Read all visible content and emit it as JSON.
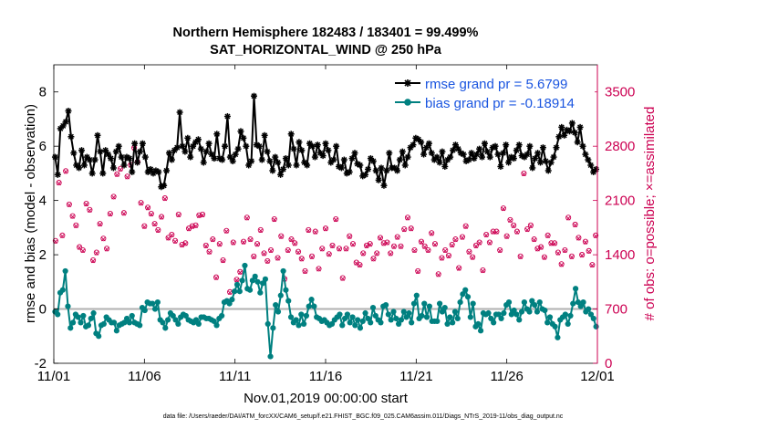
{
  "chart_data": {
    "type": "line",
    "title": "Northern Hemisphere 182483 / 183401 = 99.499%",
    "subtitle": "SAT_HORIZONTAL_WIND @ 250 hPa",
    "xlabel": "Nov.01,2019 00:00:00 start",
    "ylabel": "rmse and bias (model - observation)",
    "y2label": "# of obs: o=possible; ×=assimilated",
    "footer": "data file: /Users/raeder/DAI/ATM_forcXX/CAM6_setup/f.e21.FHIST_BGC.f09_025.CAM6assim.011/Diags_NTrS_2019-11/obs_diag_output.nc",
    "xlim": [
      0,
      120
    ],
    "ylim": [
      -2,
      9
    ],
    "y2lim": [
      0,
      3850
    ],
    "xticks": [
      0,
      20,
      40,
      60,
      80,
      100,
      120
    ],
    "xticklabels": [
      "11/01",
      "11/06",
      "11/11",
      "11/16",
      "11/21",
      "11/26",
      "12/01"
    ],
    "yticks": [
      -2,
      0,
      2,
      4,
      6,
      8
    ],
    "y2ticks": [
      0,
      700,
      1400,
      2100,
      2800,
      3500
    ],
    "zero_line": 0,
    "legend": {
      "position": "top-right",
      "entries": [
        "rmse grand pr = 5.6799",
        "bias grand pr = -0.18914"
      ]
    },
    "colors": {
      "rmse": "#000000",
      "bias": "#008080",
      "obs": "#cc0052",
      "legend_text": "#1a55e0",
      "zero_line": "#b0b0b0"
    },
    "series": [
      {
        "name": "rmse",
        "axis": "left",
        "values": [
          5.6,
          4.95,
          6.65,
          6.75,
          6.9,
          7.3,
          6.35,
          5.75,
          5.3,
          5.2,
          5.85,
          5.3,
          5.6,
          5.5,
          5.0,
          5.5,
          6.4,
          5.8,
          5.0,
          5.85,
          5.7,
          5.55,
          5.2,
          5.8,
          6.0,
          5.6,
          5.3,
          5.6,
          5.55,
          5.05,
          6.1,
          5.4,
          5.8,
          6.1,
          5.6,
          5.05,
          5.15,
          5.0,
          5.1,
          5.05,
          4.5,
          4.55,
          5.1,
          5.75,
          5.5,
          5.85,
          5.95,
          7.25,
          6.0,
          5.8,
          6.3,
          5.6,
          6.0,
          6.15,
          6.25,
          5.9,
          5.4,
          5.8,
          6.1,
          5.7,
          5.55,
          6.45,
          5.55,
          5.5,
          6.0,
          7.1,
          5.6,
          5.45,
          5.7,
          5.9,
          6.55,
          6.3,
          6.0,
          5.3,
          5.45,
          7.85,
          6.05,
          6.0,
          5.5,
          6.4,
          5.8,
          5.45,
          5.1,
          5.6,
          5.4,
          4.95,
          5.15,
          5.55,
          5.3,
          6.45,
          5.9,
          5.3,
          6.15,
          5.85,
          5.4,
          5.3,
          6.1,
          6.0,
          5.6,
          6.05,
          5.75,
          5.65,
          6.1,
          5.85,
          5.4,
          5.5,
          6.0,
          5.25,
          5.2,
          5.5,
          5.0,
          5.05,
          5.55,
          5.75,
          5.35,
          5.3,
          4.9,
          4.95,
          5.15,
          5.55,
          5.45,
          5.1,
          4.75,
          5.2,
          4.55,
          5.1,
          5.75,
          5.2,
          5.2,
          5.1,
          5.5,
          5.8,
          5.3,
          5.6,
          5.95,
          6.05,
          6.3,
          6.25,
          6.15,
          5.7,
          5.95,
          6.1,
          5.75,
          5.5,
          5.6,
          5.4,
          5.8,
          5.25,
          5.5,
          5.6,
          5.85,
          6.05,
          5.9,
          5.75,
          5.7,
          5.45,
          5.5,
          5.75,
          5.55,
          5.7,
          5.9,
          5.6,
          6.1,
          5.8,
          5.6,
          5.95,
          6.0,
          5.7,
          5.25,
          5.75,
          6.05,
          5.4,
          5.6,
          5.55,
          5.85,
          6.05,
          5.65,
          5.6,
          5.7,
          6.0,
          5.2,
          5.55,
          5.75,
          5.4,
          5.95,
          5.45,
          5.1,
          5.4,
          5.6,
          5.95,
          6.35,
          6.7,
          6.4,
          6.6,
          6.55,
          6.85,
          6.5,
          6.15,
          6.7,
          6.0,
          5.7,
          5.5,
          5.3,
          5.05,
          5.15
        ]
      },
      {
        "name": "bias",
        "axis": "left",
        "values": [
          -0.1,
          -0.2,
          0.6,
          0.7,
          1.4,
          0.1,
          -0.7,
          -0.5,
          -0.2,
          -0.3,
          -0.5,
          -0.25,
          -0.65,
          -0.6,
          -0.35,
          -0.15,
          -0.9,
          -1.0,
          -0.6,
          -0.55,
          -0.3,
          -0.4,
          -0.5,
          -0.5,
          -0.8,
          -0.6,
          -0.55,
          -0.5,
          -0.35,
          -0.5,
          -0.25,
          -0.5,
          -0.55,
          -0.6,
          0.05,
          -0.05,
          0.25,
          0.2,
          0.2,
          0.0,
          0.25,
          -0.4,
          -0.5,
          -0.7,
          -0.4,
          -0.15,
          -0.25,
          -0.4,
          -0.55,
          -0.3,
          -0.2,
          -0.25,
          -0.4,
          -0.45,
          -0.5,
          -0.4,
          -0.55,
          -0.3,
          -0.3,
          -0.35,
          -0.35,
          -0.4,
          -0.45,
          -0.6,
          -0.35,
          -0.25,
          0.25,
          0.3,
          0.2,
          0.35,
          0.65,
          0.9,
          0.65,
          1.05,
          1.6,
          0.75,
          0.7,
          1.05,
          1.2,
          1.0,
          0.6,
          0.95,
          1.1,
          -0.55,
          -1.75,
          -0.7,
          0.15,
          -0.1,
          0.5,
          1.4,
          0.7,
          0.3,
          -0.3,
          -0.5,
          -0.4,
          -0.6,
          -0.2,
          -0.55,
          -0.25,
          0.1,
          0.35,
          0.1,
          -0.3,
          -0.35,
          -0.45,
          -0.4,
          -0.5,
          -0.6,
          -0.55,
          -0.4,
          -0.3,
          -0.2,
          -0.6,
          -0.35,
          -0.2,
          -0.5,
          -0.3,
          -0.6,
          -0.4,
          -0.7,
          -0.45,
          -0.15,
          -0.35,
          -0.5,
          0.05,
          -0.25,
          -0.4,
          -0.5,
          0.1,
          0.15,
          -0.2,
          -0.4,
          -0.1,
          -0.35,
          -0.55,
          -0.4,
          -0.1,
          -0.3,
          -0.15,
          -0.5,
          0.2,
          0.5,
          -0.35,
          -0.25,
          0.2,
          -0.3,
          0.1,
          -0.45,
          -0.45,
          -0.45,
          0.2,
          -0.1,
          0.05,
          -0.55,
          -0.3,
          -0.5,
          -0.1,
          -0.35,
          0.25,
          0.55,
          0.7,
          0.45,
          -0.3,
          0.2,
          -0.65,
          -0.55,
          -0.8,
          -0.15,
          -0.2,
          -0.15,
          -0.35,
          -0.5,
          -0.2,
          -0.2,
          -0.35,
          -0.15,
          0.15,
          0.25,
          -0.2,
          -0.05,
          -0.2,
          -0.4,
          -0.1,
          0.25,
          0.0,
          -0.1,
          0.3,
          0.15,
          -0.1,
          0.25,
          0.0,
          -0.05,
          -0.5,
          -0.3,
          -0.55,
          -0.65,
          -1.05,
          -0.4,
          -0.3,
          -0.2,
          -0.55,
          -0.25,
          0.2,
          0.75,
          0.25,
          0.1,
          0.25,
          -0.1,
          0.0,
          -0.2,
          -0.35,
          -0.65
        ]
      },
      {
        "name": "possible",
        "axis": "right",
        "marker": "circle",
        "values": [
          1580,
          2330,
          1650,
          2480,
          2050,
          1900,
          1780,
          1500,
          1460,
          2060,
          1980,
          1330,
          1430,
          1800,
          1610,
          1480,
          1930,
          2150,
          2440,
          2510,
          1940,
          2410,
          2560,
          2780,
          2600,
          2070,
          1770,
          2010,
          1930,
          1800,
          1720,
          1890,
          2130,
          1620,
          1660,
          1580,
          1920,
          1530,
          1550,
          1740,
          1770,
          1780,
          1910,
          1920,
          1520,
          1440,
          1600,
          1110,
          1540,
          1330,
          1710,
          920,
          1560,
          1080,
          1180,
          1570,
          1880,
          1600,
          1380,
          1540,
          1720,
          1420,
          1320,
          1460,
          1860,
          1360,
          1640,
          1090,
          1460,
          1600,
          1550,
          1440,
          1350,
          1190,
          1720,
          1380,
          1700,
          1220,
          1480,
          1740,
          1410,
          1520,
          1860,
          1480,
          1100,
          1480,
          1640,
          1540,
          1300,
          1270,
          1420,
          1520,
          1540,
          1350,
          1420,
          1620,
          1550,
          1560,
          1420,
          1510,
          1630,
          1510,
          1730,
          1880,
          1740,
          1460,
          1190,
          1570,
          1510,
          1460,
          1680,
          1540,
          1150,
          1360,
          1460,
          1390,
          1530,
          1600,
          1230,
          1630,
          1770,
          1440,
          1370,
          1520,
          1560,
          1200,
          1660,
          1560,
          1700,
          1700,
          1460,
          2000,
          1640,
          1850,
          1780,
          1700,
          1380,
          2450,
          1730,
          1780,
          1600,
          1480,
          1500,
          1370,
          1650,
          1550,
          1550,
          1430,
          1280,
          1460,
          1880,
          1380,
          1790,
          1620,
          1400,
          1570,
          1450,
          1270,
          1650
        ]
      },
      {
        "name": "assimilated",
        "axis": "right",
        "marker": "x",
        "values": [
          1570,
          2320,
          1640,
          2470,
          2040,
          1890,
          1770,
          1490,
          1450,
          2050,
          1970,
          1320,
          1420,
          1790,
          1600,
          1470,
          1920,
          2140,
          2430,
          2500,
          1930,
          2400,
          2550,
          2770,
          2590,
          2060,
          1760,
          2000,
          1920,
          1790,
          1710,
          1880,
          2120,
          1610,
          1650,
          1570,
          1910,
          1520,
          1540,
          1730,
          1760,
          1770,
          1900,
          1910,
          1510,
          1430,
          1590,
          1100,
          1530,
          1320,
          1700,
          910,
          1550,
          1070,
          1170,
          1560,
          1870,
          1590,
          1370,
          1530,
          1710,
          1410,
          1310,
          1450,
          1850,
          1350,
          1630,
          1080,
          1450,
          1590,
          1540,
          1430,
          1340,
          1180,
          1710,
          1370,
          1690,
          1210,
          1470,
          1730,
          1400,
          1510,
          1850,
          1470,
          1090,
          1470,
          1630,
          1530,
          1290,
          1260,
          1410,
          1510,
          1530,
          1340,
          1410,
          1610,
          1540,
          1550,
          1410,
          1500,
          1620,
          1500,
          1720,
          1870,
          1730,
          1450,
          1180,
          1560,
          1500,
          1450,
          1670,
          1530,
          1140,
          1350,
          1450,
          1380,
          1520,
          1590,
          1220,
          1620,
          1760,
          1430,
          1360,
          1510,
          1550,
          1190,
          1650,
          1550,
          1690,
          1690,
          1450,
          1990,
          1630,
          1840,
          1770,
          1690,
          1370,
          2440,
          1720,
          1770,
          1590,
          1470,
          1490,
          1360,
          1640,
          1540,
          1540,
          1420,
          1270,
          1450,
          1870,
          1370,
          1780,
          1610,
          1390,
          1560,
          1440,
          1260,
          1640
        ]
      }
    ]
  }
}
